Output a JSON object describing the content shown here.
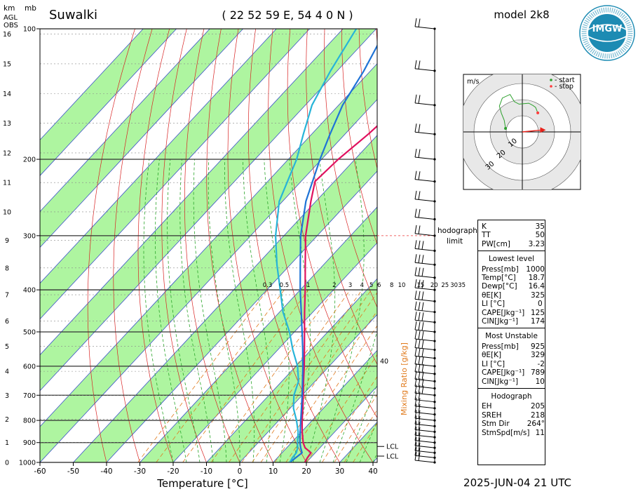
{
  "header": {
    "station": "Suwalki",
    "coords": "( 22 52 59 E, 54 4 0 N )",
    "model": "model 2k8",
    "logo_text": "IMGW",
    "logo_ring_text": "INSTYTUT METEOROLOGII I GOSPODARKI WODNEJ PAŃSTWOWY INSTYTUT BADAWCZY",
    "datetime": "2025-JUN-04   21 UTC"
  },
  "axes": {
    "km_label": "km",
    "mb_label": "mb",
    "agl_label": "AGL",
    "obs_label": "OBS",
    "x_title": "Temperature [°C]",
    "mixing_ratio_title": "Mixing Ratio [g/kg]"
  },
  "hodograph": {
    "units_label": "m/s",
    "legend_start": "- start",
    "legend_stop": "- stop",
    "ring_labels": [
      "10",
      "20",
      "30"
    ],
    "limit_label_1": "hodograph",
    "limit_label_2": "limit",
    "path": [
      [
        -5.2,
        1.1
      ],
      [
        -5.6,
        3.6
      ],
      [
        -6.5,
        5.8
      ],
      [
        -7.1,
        8.0
      ],
      [
        -6.2,
        10.5
      ],
      [
        -3.8,
        11.6
      ],
      [
        -2.5,
        9.4
      ],
      [
        -1.0,
        8.6
      ],
      [
        2.0,
        8.9
      ],
      [
        3.3,
        8.2
      ],
      [
        4.1,
        7.6
      ],
      [
        4.8,
        5.9
      ]
    ],
    "storm_vector": [
      6.2,
      0.6
    ],
    "colors": {
      "path": "#2ca02c",
      "start": "#2ca02c",
      "stop": "#ff3b3b",
      "storm": "#e8231b"
    }
  },
  "indices": {
    "top": [
      {
        "k": "K",
        "v": "35"
      },
      {
        "k": "TT",
        "v": "50"
      },
      {
        "k": "PW[cm]",
        "v": "3.23"
      }
    ],
    "lowest_title": "Lowest level",
    "lowest": [
      {
        "k": "Press[mb]",
        "v": "1000"
      },
      {
        "k": "Temp[°C]",
        "v": "18.7"
      },
      {
        "k": "Dewp[°C]",
        "v": "16.4"
      },
      {
        "k": "θE[K]",
        "v": "325"
      },
      {
        "k": "LI [°C]",
        "v": "0"
      },
      {
        "k": "CAPE[Jkg⁻¹]",
        "v": "125"
      },
      {
        "k": "CIN[Jkg⁻¹]",
        "v": "174"
      }
    ],
    "mu_title": "Most Unstable",
    "mu": [
      {
        "k": "Press[mb]",
        "v": "925"
      },
      {
        "k": "θE[K]",
        "v": "329"
      },
      {
        "k": "LI [°C]",
        "v": "-2"
      },
      {
        "k": "CAPE[Jkg⁻¹]",
        "v": "789"
      },
      {
        "k": "CIN[Jkg⁻¹]",
        "v": "10"
      }
    ],
    "hodo_title": "Hodograph",
    "hodo": [
      {
        "k": "EH",
        "v": "205"
      },
      {
        "k": "SREH",
        "v": "218"
      },
      {
        "k": "Stm Dir",
        "v": "264°"
      },
      {
        "k": "StmSpd[m/s]",
        "v": "11"
      }
    ]
  },
  "chart_data": {
    "type": "line",
    "title": "Suwalki",
    "xlabel": "Temperature [°C]",
    "ylabel": "mb",
    "x_ticks": [
      -60,
      -50,
      -40,
      -30,
      -20,
      -10,
      0,
      10,
      20,
      30,
      40
    ],
    "pressure_labels": [
      100,
      200,
      300,
      400,
      500,
      600,
      700,
      800,
      900,
      1000
    ],
    "km_labels": [
      0,
      1,
      2,
      3,
      4,
      5,
      6,
      7,
      8,
      9,
      10,
      11,
      12,
      13,
      14,
      15,
      16
    ],
    "mixing_ratio_labels": [
      "0.3",
      "0.5",
      "1",
      "2",
      "3",
      "4",
      "5",
      "6",
      "8",
      "10",
      "15",
      "20",
      "25",
      "30",
      "35"
    ],
    "mixing_ratio_values": [
      0.3,
      0.5,
      1,
      2,
      3,
      4,
      5,
      6,
      8,
      10,
      15,
      20,
      25,
      30,
      35
    ],
    "mixing_ratio_upper_label": "40",
    "lcl_label": "LCL",
    "lcl_pressures": [
      950,
      1000
    ],
    "hodograph_limit_pressure": 300,
    "colors": {
      "temperature": "#e0115f",
      "dewpoint": "#27b4d8",
      "parcel": "#1e73d6",
      "isotherm_band": "#aef5a0",
      "isotherm": "#3a52c8",
      "dry_adiabat": "#d82222",
      "moist_adiabat": "#2aa52a",
      "mixing_ratio": "#e07a1c"
    },
    "series": [
      {
        "name": "",
        "role": "temperature",
        "points": [
          [
            1000,
            19.5
          ],
          [
            975,
            19.0
          ],
          [
            950,
            18.7
          ],
          [
            925,
            15.5
          ],
          [
            900,
            13.5
          ],
          [
            850,
            10.2
          ],
          [
            800,
            7.0
          ],
          [
            750,
            3.8
          ],
          [
            700,
            0.3
          ],
          [
            650,
            -3.5
          ],
          [
            600,
            -7.5
          ],
          [
            550,
            -12.0
          ],
          [
            500,
            -17.0
          ],
          [
            450,
            -22.5
          ],
          [
            400,
            -28.5
          ],
          [
            350,
            -35.5
          ],
          [
            300,
            -43.5
          ],
          [
            250,
            -51.5
          ],
          [
            225,
            -55.8
          ],
          [
            200,
            -55.0
          ],
          [
            175,
            -53.0
          ],
          [
            150,
            -51.5
          ],
          [
            125,
            -50.5
          ],
          [
            100,
            -51.0
          ]
        ]
      },
      {
        "name": "",
        "role": "parcel",
        "points": [
          [
            1000,
            15.0
          ],
          [
            975,
            15.5
          ],
          [
            950,
            16.0
          ],
          [
            925,
            14.2
          ],
          [
            900,
            12.5
          ],
          [
            850,
            9.6
          ],
          [
            800,
            6.6
          ],
          [
            750,
            3.4
          ],
          [
            700,
            0.0
          ],
          [
            650,
            -3.8
          ],
          [
            600,
            -7.9
          ],
          [
            550,
            -12.5
          ],
          [
            500,
            -17.7
          ],
          [
            450,
            -23.5
          ],
          [
            400,
            -30.0
          ],
          [
            350,
            -37.0
          ],
          [
            300,
            -45.0
          ],
          [
            250,
            -53.0
          ],
          [
            200,
            -60.5
          ],
          [
            175,
            -64.5
          ],
          [
            150,
            -68.8
          ],
          [
            125,
            -72.0
          ],
          [
            100,
            -77.0
          ]
        ]
      },
      {
        "name": "",
        "role": "dewpoint",
        "points": [
          [
            1000,
            15.0
          ],
          [
            975,
            14.5
          ],
          [
            950,
            14.3
          ],
          [
            925,
            13.3
          ],
          [
            900,
            11.8
          ],
          [
            850,
            9.0
          ],
          [
            800,
            5.3
          ],
          [
            750,
            1.0
          ],
          [
            700,
            -2.5
          ],
          [
            650,
            -5.0
          ],
          [
            600,
            -9.5
          ],
          [
            550,
            -15.5
          ],
          [
            500,
            -21.5
          ],
          [
            450,
            -29.0
          ],
          [
            400,
            -36.0
          ],
          [
            350,
            -44.0
          ],
          [
            300,
            -52.5
          ],
          [
            250,
            -61.0
          ],
          [
            200,
            -67.5
          ],
          [
            175,
            -72.5
          ],
          [
            150,
            -78.0
          ],
          [
            125,
            -82.0
          ],
          [
            100,
            -86.0
          ]
        ]
      }
    ]
  }
}
